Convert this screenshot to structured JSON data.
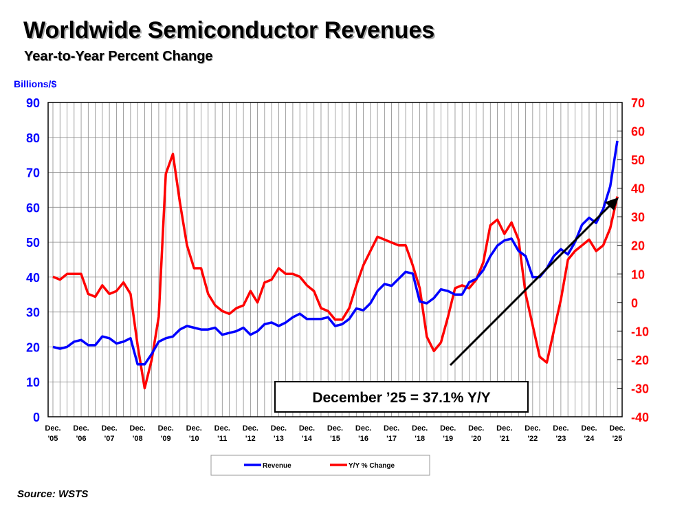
{
  "chart_data": {
    "type": "line",
    "title": "Worldwide Semiconductor Revenues",
    "subtitle": "Year-to-Year Percent Change",
    "y_label": "Billions/$",
    "annotation": "December ’25 = 37.1% Y/Y",
    "source": "Source: WSTS",
    "categories": [
      "Dec. '05",
      null,
      null,
      null,
      "Dec. '06",
      null,
      null,
      null,
      "Dec. '07",
      null,
      null,
      null,
      "Dec. '08",
      null,
      null,
      null,
      "Dec. '09",
      null,
      null,
      null,
      "Dec. '10",
      null,
      null,
      null,
      "Dec. '11",
      null,
      null,
      null,
      "Dec. '12",
      null,
      null,
      null,
      "Dec. '13",
      null,
      null,
      null,
      "Dec. '14",
      null,
      null,
      null,
      "Dec. '15",
      null,
      null,
      null,
      "Dec. '16",
      null,
      null,
      null,
      "Dec. '17",
      null,
      null,
      null,
      "Dec. '18",
      null,
      null,
      null,
      "Dec. '19",
      null,
      null,
      null,
      "Dec. '20",
      null,
      null,
      null,
      "Dec. '21",
      null,
      null,
      null,
      "Dec. '22",
      null,
      null,
      null,
      "Dec. '23",
      null,
      null,
      null,
      "Dec. '24",
      null,
      null,
      null,
      "Dec. '25"
    ],
    "series": [
      {
        "name": "Revenue",
        "color": "#0000ff",
        "values": [
          20,
          19.5,
          20,
          21.5,
          22,
          20.5,
          20.5,
          23,
          22.5,
          21,
          21.5,
          22.5,
          15,
          15,
          18,
          21.5,
          22.5,
          23,
          25,
          26,
          25.5,
          25,
          25,
          25.5,
          23.5,
          24,
          24.5,
          25.5,
          23.5,
          24.5,
          26.5,
          27,
          26,
          27,
          28.5,
          29.5,
          28,
          28,
          28,
          28.5,
          26,
          26.5,
          28,
          31,
          30.5,
          32.5,
          36,
          38,
          37.5,
          39.5,
          41.5,
          41,
          33,
          32.5,
          34,
          36.5,
          36,
          35,
          35,
          38.5,
          39.5,
          42,
          46,
          49,
          50.5,
          51,
          47.5,
          46,
          40,
          40,
          42.5,
          46,
          48,
          46.5,
          50,
          55,
          57,
          55.5,
          59.5,
          66,
          79
        ]
      },
      {
        "name": "Y/Y % Change",
        "color": "#ff0000",
        "axis": "y2",
        "values": [
          9,
          8,
          10,
          10,
          10,
          3,
          2,
          6,
          3,
          4,
          7,
          3,
          -15,
          -30,
          -20,
          -5,
          45,
          52,
          35,
          20,
          12,
          12,
          3,
          -1,
          -3,
          -4,
          -2,
          -1,
          4,
          0,
          7,
          8,
          12,
          10,
          10,
          9,
          6,
          4,
          -2,
          -3,
          -6,
          -6,
          -2,
          6,
          13,
          18,
          23,
          22,
          21,
          20,
          20,
          13,
          5,
          -12,
          -17,
          -14,
          -5,
          5,
          6,
          5,
          8,
          14,
          27,
          29,
          24,
          28,
          22,
          3,
          -8,
          -19,
          -21,
          -10,
          1,
          15,
          18,
          20,
          22,
          18,
          20,
          26,
          37.1
        ]
      }
    ],
    "ylim": [
      0,
      90
    ],
    "yticks": [
      0,
      10,
      20,
      30,
      40,
      50,
      60,
      70,
      80,
      90
    ],
    "y2lim": [
      -40,
      70
    ],
    "y2ticks": [
      -40,
      -30,
      -20,
      -10,
      0,
      10,
      20,
      30,
      40,
      50,
      60,
      70
    ],
    "grid": true
  }
}
